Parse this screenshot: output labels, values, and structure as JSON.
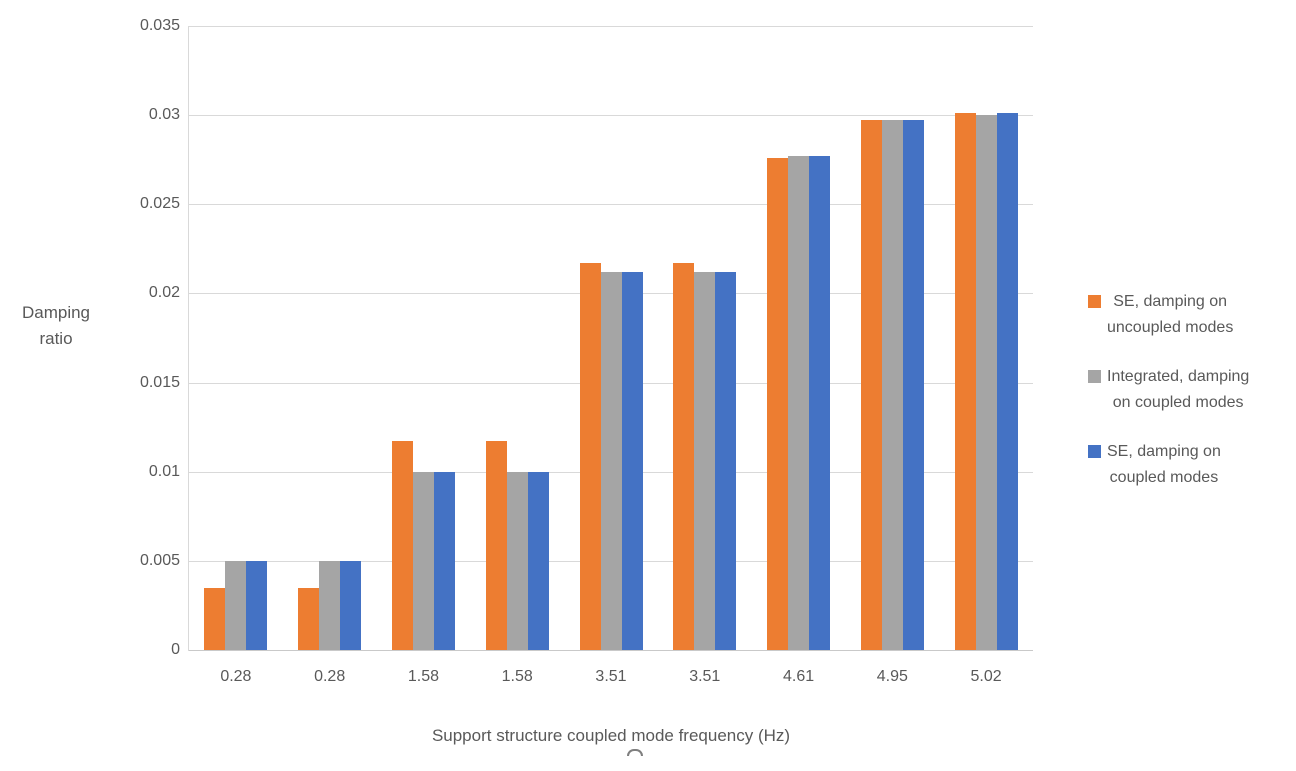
{
  "chart_data": {
    "type": "bar",
    "title": "",
    "xlabel": "Support structure coupled mode frequency (Hz)",
    "ylabel": "Damping ratio",
    "ylabel_lines": [
      "Damping",
      "ratio"
    ],
    "categories": [
      "0.28",
      "0.28",
      "1.58",
      "1.58",
      "3.51",
      "3.51",
      "4.61",
      "4.95",
      "5.02"
    ],
    "series": [
      {
        "name": "SE, damping on uncoupled modes",
        "legend_lines": [
          "SE, damping on",
          "uncoupled modes"
        ],
        "color": "#ED7D31",
        "values": [
          0.0035,
          0.0035,
          0.0117,
          0.0117,
          0.0217,
          0.0217,
          0.0276,
          0.0297,
          0.0301
        ]
      },
      {
        "name": "Integrated, damping on coupled modes",
        "legend_lines": [
          "Integrated, damping",
          "on coupled modes"
        ],
        "color": "#A5A5A5",
        "values": [
          0.005,
          0.005,
          0.01,
          0.01,
          0.0212,
          0.0212,
          0.0277,
          0.0297,
          0.03
        ]
      },
      {
        "name": "SE, damping on coupled modes",
        "legend_lines": [
          "SE, damping on",
          "coupled modes"
        ],
        "color": "#4472C4",
        "values": [
          0.005,
          0.005,
          0.01,
          0.01,
          0.0212,
          0.0212,
          0.0277,
          0.0297,
          0.0301
        ]
      }
    ],
    "y_axis": {
      "min": 0,
      "max": 0.035,
      "step": 0.005,
      "tick_labels": [
        "0",
        "0.005",
        "0.01",
        "0.015",
        "0.02",
        "0.025",
        "0.03",
        "0.035"
      ]
    },
    "grid": true,
    "legend_position": "right"
  },
  "colors": {
    "text": "#595959",
    "gridline": "#D9D9D9",
    "axis_line": "#C9C9C9"
  }
}
